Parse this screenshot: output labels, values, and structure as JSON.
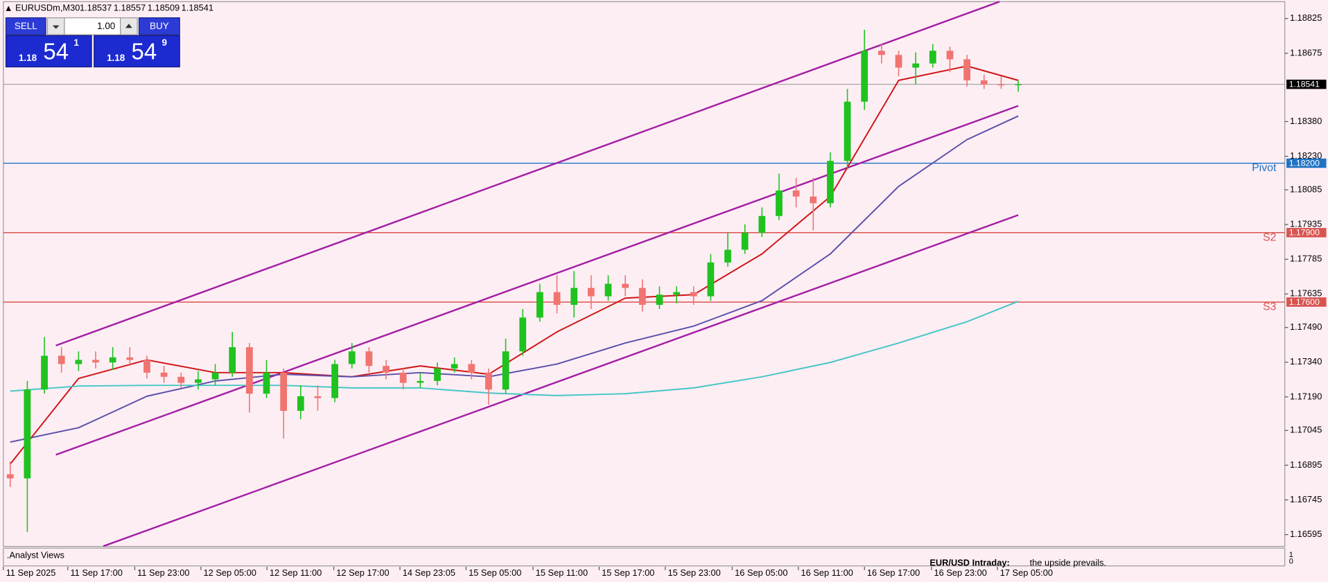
{
  "chart_data": {
    "type": "candlestick",
    "title": "EURUSDm,M30",
    "header_values": [
      1.18537,
      1.18557,
      1.18509,
      1.18541
    ],
    "xlim": [
      -0.4,
      74.6
    ],
    "ylim": [
      1.16544,
      1.18898
    ],
    "yticks": [
      1.18825,
      1.18675,
      {
        "value": 1.1838,
        "label": "1.18380"
      },
      {
        "value": 1.1823,
        "label": "1.18230"
      },
      1.18085,
      1.17935,
      1.17785,
      1.17635,
      {
        "value": 1.1749,
        "label": "1.17490"
      },
      {
        "value": 1.1734,
        "label": "1.17340"
      },
      {
        "value": 1.1719,
        "label": "1.17190"
      },
      1.17045,
      1.16895,
      1.16745,
      1.16595
    ],
    "xticks": [
      {
        "value": -0.4,
        "label": "11 Sep 2025"
      },
      {
        "value": 3.37,
        "label": "11 Sep 17:00"
      },
      {
        "value": 7.29,
        "label": "11 Sep 23:00"
      },
      {
        "value": 11.16,
        "label": "12 Sep 05:00"
      },
      {
        "value": 15.03,
        "label": "12 Sep 11:00"
      },
      {
        "value": 18.94,
        "label": "12 Sep 17:00"
      },
      {
        "value": 22.81,
        "label": "14 Sep 23:05"
      },
      {
        "value": 26.68,
        "label": "15 Sep 05:00"
      },
      {
        "value": 30.6,
        "label": "15 Sep 11:00"
      },
      {
        "value": 34.47,
        "label": "15 Sep 17:00"
      },
      {
        "value": 38.34,
        "label": "15 Sep 23:00"
      },
      {
        "value": 42.26,
        "label": "16 Sep 05:00"
      },
      {
        "value": 46.13,
        "label": "16 Sep 11:00"
      },
      {
        "value": 50.0,
        "label": "16 Sep 17:00"
      },
      {
        "value": 53.92,
        "label": "16 Sep 23:00"
      },
      {
        "value": 57.78,
        "label": "17 Sep 05:00"
      }
    ],
    "candles": {
      "colors": {
        "up": "#1fc21f",
        "down": "#f07470"
      },
      "open": [
        1.16856,
        1.16838,
        1.17222,
        1.17368,
        1.17332,
        1.1735,
        1.17339,
        1.17361,
        1.1735,
        1.17295,
        1.17277,
        1.17251,
        1.17266,
        1.17295,
        1.17405,
        1.17204,
        1.17295,
        1.1713,
        1.17193,
        1.17185,
        1.17332,
        1.17387,
        1.17324,
        1.17295,
        1.17251,
        1.17259,
        1.17313,
        1.17332,
        1.17295,
        1.17222,
        1.17387,
        1.17533,
        1.17643,
        1.17588,
        1.17661,
        1.17625,
        1.17679,
        1.17661,
        1.17588,
        1.17632,
        1.17643,
        1.17625,
        1.17771,
        1.17826,
        1.17899,
        1.17972,
        1.18082,
        1.18056,
        1.18027,
        1.1821,
        1.18466,
        1.18686,
        1.18668,
        1.18613,
        1.18631,
        1.18686,
        1.18649,
        1.18558,
        1.1854,
        1.18537
      ],
      "high": [
        1.16911,
        1.17259,
        1.17449,
        1.17405,
        1.17387,
        1.17387,
        1.17405,
        1.17405,
        1.17368,
        1.17324,
        1.17295,
        1.17302,
        1.17332,
        1.17471,
        1.17423,
        1.1735,
        1.17313,
        1.1724,
        1.1724,
        1.1735,
        1.17423,
        1.17405,
        1.1735,
        1.17313,
        1.17295,
        1.17339,
        1.17361,
        1.1735,
        1.17313,
        1.17442,
        1.1757,
        1.17679,
        1.17716,
        1.17734,
        1.17716,
        1.17716,
        1.17716,
        1.17698,
        1.17668,
        1.17668,
        1.17668,
        1.17808,
        1.17899,
        1.17936,
        1.18009,
        1.18155,
        1.18137,
        1.18137,
        1.18247,
        1.18521,
        1.18777,
        1.18715,
        1.18686,
        1.18679,
        1.18715,
        1.18704,
        1.18668,
        1.18583,
        1.18576,
        1.18557
      ],
      "low": [
        1.16801,
        1.16607,
        1.17204,
        1.17295,
        1.17302,
        1.17313,
        1.17306,
        1.17324,
        1.1727,
        1.17251,
        1.17229,
        1.17222,
        1.1724,
        1.17277,
        1.17123,
        1.17185,
        1.1701,
        1.17094,
        1.1713,
        1.17167,
        1.17313,
        1.17295,
        1.17266,
        1.17222,
        1.17229,
        1.1724,
        1.17295,
        1.17266,
        1.17156,
        1.17204,
        1.17368,
        1.17515,
        1.17551,
        1.17533,
        1.1757,
        1.17606,
        1.17625,
        1.17559,
        1.1757,
        1.17595,
        1.17588,
        1.17606,
        1.17753,
        1.17808,
        1.17881,
        1.17954,
        1.18009,
        1.1791,
        1.18009,
        1.18174,
        1.1843,
        1.18631,
        1.18576,
        1.1854,
        1.18613,
        1.18594,
        1.18532,
        1.18521,
        1.18521,
        1.18509
      ],
      "close": [
        1.16838,
        1.17222,
        1.17368,
        1.17332,
        1.1735,
        1.17339,
        1.17361,
        1.1735,
        1.17295,
        1.17277,
        1.17251,
        1.17266,
        1.17295,
        1.17405,
        1.17204,
        1.17295,
        1.1713,
        1.17193,
        1.17185,
        1.17332,
        1.17387,
        1.17324,
        1.17295,
        1.17251,
        1.17259,
        1.17313,
        1.17332,
        1.17295,
        1.17222,
        1.17387,
        1.17533,
        1.17643,
        1.17588,
        1.17661,
        1.17625,
        1.17679,
        1.17661,
        1.17588,
        1.17632,
        1.17643,
        1.17625,
        1.17771,
        1.17826,
        1.17899,
        1.17972,
        1.18082,
        1.18056,
        1.18027,
        1.1821,
        1.18466,
        1.18686,
        1.18668,
        1.18613,
        1.18631,
        1.18686,
        1.18649,
        1.18558,
        1.1854,
        1.18537,
        1.18541
      ]
    },
    "lines": [
      {
        "color": "#d01414",
        "x": [
          0,
          4,
          8,
          12,
          16,
          20,
          24,
          28,
          32,
          36,
          40,
          44,
          48,
          52,
          56,
          59
        ],
        "values": [
          1.169,
          1.1727,
          1.1735,
          1.17295,
          1.17295,
          1.17277,
          1.17324,
          1.17288,
          1.17471,
          1.17617,
          1.17632,
          1.17808,
          1.18056,
          1.18558,
          1.1862,
          1.18558
        ]
      },
      {
        "color": "#5a4fa8",
        "x": [
          0,
          4,
          8,
          12,
          16,
          20,
          24,
          28,
          32,
          36,
          40,
          44,
          48,
          52,
          56,
          59
        ],
        "values": [
          1.16995,
          1.17057,
          1.17193,
          1.17259,
          1.17288,
          1.17277,
          1.17295,
          1.17277,
          1.17332,
          1.17423,
          1.17496,
          1.17606,
          1.17808,
          1.181,
          1.18302,
          1.18404
        ]
      },
      {
        "color": "#45c6c6",
        "x": [
          0,
          4,
          8,
          12,
          16,
          20,
          24,
          28,
          32,
          36,
          40,
          44,
          48,
          52,
          56,
          59
        ],
        "values": [
          1.17215,
          1.17237,
          1.1724,
          1.1724,
          1.1724,
          1.17229,
          1.17229,
          1.17207,
          1.17196,
          1.17204,
          1.17229,
          1.17277,
          1.17339,
          1.17423,
          1.17515,
          1.17603
        ]
      }
    ],
    "trendlines": [
      {
        "color": "#a41ea4",
        "x": [
          2.67,
          57.9
        ],
        "values": [
          1.17412,
          1.18898
        ]
      },
      {
        "color": "#a41ea4",
        "x": [
          2.67,
          59.0
        ],
        "values": [
          1.1694,
          1.18448
        ]
      },
      {
        "color": "#a41ea4",
        "x": [
          5.45,
          59.0
        ],
        "values": [
          1.16545,
          1.17976
        ]
      }
    ],
    "levels": [
      {
        "name": "Pivot",
        "value": 1.182,
        "label": "1.18200",
        "color": "#1f73c4"
      },
      {
        "name": "S2",
        "value": 1.179,
        "label": "1.17900",
        "color": "#d9534f"
      },
      {
        "name": "S3",
        "value": 1.176,
        "label": "1.17600",
        "color": "#d9534f"
      }
    ],
    "current_price": 1.18541,
    "subwindow": {
      "title": ".Analyst Views",
      "yticks": [
        1,
        0
      ],
      "headline": "EUR/USD Intraday:",
      "text": "the upside prevails."
    }
  },
  "ui": {
    "sell": "SELL",
    "buy": "BUY",
    "lot": "1.00",
    "bid": {
      "big": "1.18",
      "pips": "54",
      "point": "1"
    },
    "ask": {
      "big": "1.18",
      "pips": "54",
      "point": "9"
    }
  }
}
